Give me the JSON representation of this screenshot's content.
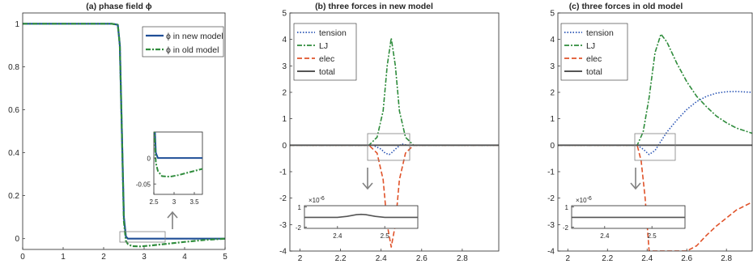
{
  "panels": [
    {
      "title": "(a) phase field ϕ",
      "xlim": [
        0,
        5
      ],
      "ylim": [
        -0.05,
        1.05
      ],
      "xticks": [
        "0",
        "1",
        "2",
        "3",
        "4",
        "5"
      ],
      "xtick_values": [
        0,
        1,
        2,
        3,
        4,
        5
      ],
      "yticks": [
        "0",
        "0.2",
        "0.4",
        "0.6",
        "0.8",
        "1"
      ],
      "ytick_values": [
        0,
        0.2,
        0.4,
        0.6,
        0.8,
        1
      ],
      "legend": [
        "ϕ in new model",
        "ϕ in old model"
      ],
      "inset": {
        "xlim": [
          2.5,
          3.7
        ],
        "ylim": [
          -0.07,
          0.05
        ],
        "xticks": [
          "2.5",
          "3",
          "3.5"
        ],
        "xtick_values": [
          2.5,
          3,
          3.5
        ],
        "yticks": [
          "0",
          "-0.05"
        ],
        "ytick_values": [
          0,
          -0.05
        ]
      }
    },
    {
      "title": "(b) three forces in new model",
      "xlim": [
        1.95,
        2.98
      ],
      "ylim": [
        -4,
        5
      ],
      "xticks": [
        "2",
        "2.2",
        "2.4",
        "2.6",
        "2.8"
      ],
      "xtick_values": [
        2,
        2.2,
        2.4,
        2.6,
        2.8
      ],
      "yticks": [
        "-4",
        "-3",
        "-2",
        "-1",
        "0",
        "1",
        "2",
        "3",
        "4",
        "5"
      ],
      "ytick_values": [
        -4,
        -3,
        -2,
        -1,
        0,
        1,
        2,
        3,
        4,
        5
      ],
      "legend": [
        "tension",
        "LJ",
        "elec",
        "total"
      ],
      "inset": {
        "exponent": "×10",
        "exponent_power": "-6",
        "xlim": [
          2.33,
          2.57
        ],
        "ylim": [
          -2.2,
          1.2
        ],
        "xticks": [
          "2.4",
          "2.5"
        ],
        "xtick_values": [
          2.4,
          2.5
        ],
        "yticks": [
          "1",
          "-2"
        ],
        "ytick_values": [
          1,
          -2
        ]
      }
    },
    {
      "title": "(c) three forces in old model",
      "xlim": [
        1.95,
        2.93
      ],
      "ylim": [
        -4,
        5
      ],
      "xticks": [
        "2",
        "2.2",
        "2.4",
        "2.6",
        "2.8"
      ],
      "xtick_values": [
        2,
        2.2,
        2.4,
        2.6,
        2.8
      ],
      "yticks": [
        "-4",
        "-3",
        "-2",
        "-1",
        "0",
        "1",
        "2",
        "3",
        "4",
        "5"
      ],
      "ytick_values": [
        -4,
        -3,
        -2,
        -1,
        0,
        1,
        2,
        3,
        4,
        5
      ],
      "legend": [
        "tension",
        "LJ",
        "elec",
        "total"
      ],
      "inset": {
        "exponent": "×10",
        "exponent_power": "-6",
        "xlim": [
          2.33,
          2.57
        ],
        "ylim": [
          -2.2,
          1.2
        ],
        "xticks": [
          "2.4",
          "2.5"
        ],
        "xtick_values": [
          2.4,
          2.5
        ],
        "yticks": [
          "1",
          "-2"
        ],
        "ytick_values": [
          1,
          -2
        ]
      }
    }
  ],
  "colors": {
    "new_model": "#1f4e96",
    "old_model": "#2f8c3c",
    "tension": "#2a55b5",
    "LJ": "#2f8c3c",
    "elec": "#e0532a",
    "total": "#555555",
    "axis": "#262626",
    "box": "#808080"
  },
  "chart_data": [
    {
      "type": "line",
      "title": "(a) phase field ϕ",
      "xlabel": "",
      "ylabel": "",
      "xlim": [
        0,
        5
      ],
      "ylim": [
        -0.05,
        1.05
      ],
      "grid": false,
      "legend_position": "top-right",
      "series": [
        {
          "name": "ϕ in new model",
          "x": [
            0,
            2.2,
            2.35,
            2.4,
            2.45,
            2.5,
            2.55,
            2.6,
            5
          ],
          "y": [
            1,
            1,
            0.995,
            0.9,
            0.5,
            0.1,
            0.01,
            0,
            0
          ]
        },
        {
          "name": "ϕ in old model",
          "x": [
            0,
            2.2,
            2.35,
            2.4,
            2.45,
            2.5,
            2.55,
            2.6,
            2.7,
            2.9,
            3.1,
            3.5,
            4,
            4.5,
            5
          ],
          "y": [
            1,
            1,
            0.995,
            0.9,
            0.5,
            0.08,
            -0.01,
            -0.025,
            -0.035,
            -0.036,
            -0.033,
            -0.025,
            -0.015,
            -0.006,
            0
          ]
        }
      ]
    },
    {
      "type": "line",
      "title": "(b) three forces in new model",
      "xlabel": "",
      "ylabel": "",
      "xlim": [
        1.95,
        2.98
      ],
      "ylim": [
        -4,
        5
      ],
      "grid": false,
      "legend_position": "top-left",
      "series": [
        {
          "name": "tension",
          "x": [
            1.95,
            2.36,
            2.4,
            2.42,
            2.44,
            2.45,
            2.47,
            2.5,
            2.53,
            2.98
          ],
          "y": [
            0,
            0,
            -0.15,
            -0.3,
            -0.35,
            -0.3,
            -0.15,
            0.05,
            0,
            0
          ]
        },
        {
          "name": "LJ",
          "x": [
            1.95,
            2.34,
            2.38,
            2.41,
            2.43,
            2.45,
            2.47,
            2.49,
            2.52,
            2.56,
            2.98
          ],
          "y": [
            0,
            0,
            0.3,
            1.3,
            3.0,
            4.05,
            3.0,
            1.3,
            0.3,
            0,
            0
          ]
        },
        {
          "name": "elec",
          "x": [
            1.95,
            2.34,
            2.38,
            2.41,
            2.43,
            2.45,
            2.47,
            2.49,
            2.52,
            2.56,
            2.98
          ],
          "y": [
            0,
            0,
            -0.3,
            -1.3,
            -3.0,
            -3.85,
            -3.0,
            -1.3,
            -0.3,
            0,
            0
          ]
        },
        {
          "name": "total",
          "x": [
            1.95,
            2.98
          ],
          "y": [
            0,
            0
          ]
        }
      ]
    },
    {
      "type": "line",
      "title": "(c) three forces in old model",
      "xlabel": "",
      "ylabel": "",
      "xlim": [
        1.95,
        2.93
      ],
      "ylim": [
        -4,
        5
      ],
      "grid": false,
      "legend_position": "top-left",
      "series": [
        {
          "name": "tension",
          "x": [
            1.95,
            2.35,
            2.38,
            2.41,
            2.44,
            2.47,
            2.5,
            2.55,
            2.6,
            2.65,
            2.7,
            2.75,
            2.8,
            2.85,
            2.93
          ],
          "y": [
            0,
            0,
            -0.15,
            -0.35,
            -0.2,
            0.15,
            0.5,
            0.95,
            1.35,
            1.65,
            1.85,
            1.97,
            2.02,
            2.03,
            2.0
          ]
        },
        {
          "name": "LJ",
          "x": [
            1.95,
            2.35,
            2.38,
            2.41,
            2.44,
            2.47,
            2.5,
            2.55,
            2.6,
            2.65,
            2.7,
            2.75,
            2.8,
            2.85,
            2.93
          ],
          "y": [
            0,
            0,
            0.5,
            1.8,
            3.5,
            4.2,
            3.9,
            3.1,
            2.4,
            1.85,
            1.45,
            1.1,
            0.85,
            0.65,
            0.45
          ]
        },
        {
          "name": "elec",
          "x": [
            1.95,
            2.35,
            2.37,
            2.39,
            2.41,
            2.6,
            2.65,
            2.7,
            2.75,
            2.8,
            2.85,
            2.93
          ],
          "y": [
            0,
            0,
            -0.6,
            -2.0,
            -4.0,
            -4.0,
            -3.8,
            -3.4,
            -3.05,
            -2.75,
            -2.45,
            -2.15
          ]
        },
        {
          "name": "total",
          "x": [
            1.95,
            2.93
          ],
          "y": [
            0,
            0
          ]
        }
      ]
    }
  ]
}
